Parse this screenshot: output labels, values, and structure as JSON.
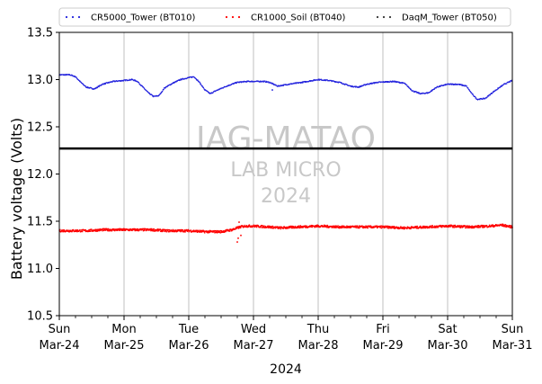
{
  "chart_data": {
    "type": "scatter",
    "title": "",
    "xlabel": "2024",
    "ylabel": "Battery voltage (Volts)",
    "ylim": [
      10.5,
      13.5
    ],
    "yticks": [
      10.5,
      11.0,
      11.5,
      12.0,
      12.5,
      13.0,
      13.5
    ],
    "ytick_labels": [
      "10.5",
      "11.0",
      "11.5",
      "12.0",
      "12.5",
      "13.0",
      "13.5"
    ],
    "xlim": [
      "2024-03-24 00:00",
      "2024-03-31 00:00"
    ],
    "xticks": [
      {
        "day": "Sun",
        "date": "Mar-24"
      },
      {
        "day": "Mon",
        "date": "Mar-25"
      },
      {
        "day": "Tue",
        "date": "Mar-26"
      },
      {
        "day": "Wed",
        "date": "Mar-27"
      },
      {
        "day": "Thu",
        "date": "Mar-28"
      },
      {
        "day": "Fri",
        "date": "Mar-29"
      },
      {
        "day": "Sat",
        "date": "Mar-30"
      },
      {
        "day": "Sun",
        "date": "Mar-31"
      }
    ],
    "grid": "vertical lines at day boundaries",
    "legend_position": "top",
    "reference_line": {
      "y": 12.27,
      "color": "#000000"
    },
    "watermark": [
      "IAG-MATAO",
      "LAB MICRO",
      "2024"
    ],
    "series": [
      {
        "name": "CR5000_Tower (BT010)",
        "color": "#2222dd",
        "points": [
          [
            "2024-03-24 00:00",
            13.05
          ],
          [
            "2024-03-24 04:00",
            13.05
          ],
          [
            "2024-03-24 06:00",
            13.03
          ],
          [
            "2024-03-24 08:00",
            12.97
          ],
          [
            "2024-03-24 10:00",
            12.92
          ],
          [
            "2024-03-24 13:00",
            12.9
          ],
          [
            "2024-03-24 16:00",
            12.95
          ],
          [
            "2024-03-24 20:00",
            12.98
          ],
          [
            "2024-03-25 00:00",
            12.99
          ],
          [
            "2024-03-25 03:00",
            13.0
          ],
          [
            "2024-03-25 05:00",
            12.98
          ],
          [
            "2024-03-25 07:00",
            12.92
          ],
          [
            "2024-03-25 09:00",
            12.86
          ],
          [
            "2024-03-25 11:00",
            12.82
          ],
          [
            "2024-03-25 13:00",
            12.83
          ],
          [
            "2024-03-25 15:00",
            12.91
          ],
          [
            "2024-03-25 18:00",
            12.96
          ],
          [
            "2024-03-25 21:00",
            13.0
          ],
          [
            "2024-03-26 00:00",
            13.02
          ],
          [
            "2024-03-26 02:00",
            13.03
          ],
          [
            "2024-03-26 04:00",
            12.97
          ],
          [
            "2024-03-26 06:00",
            12.89
          ],
          [
            "2024-03-26 08:00",
            12.85
          ],
          [
            "2024-03-26 10:00",
            12.88
          ],
          [
            "2024-03-26 14:00",
            12.93
          ],
          [
            "2024-03-26 18:00",
            12.97
          ],
          [
            "2024-03-26 22:00",
            12.98
          ],
          [
            "2024-03-27 04:00",
            12.98
          ],
          [
            "2024-03-27 06:00",
            12.97
          ],
          [
            "2024-03-27 09:00",
            12.93
          ],
          [
            "2024-03-27 13:00",
            12.95
          ],
          [
            "2024-03-27 18:00",
            12.97
          ],
          [
            "2024-03-28 00:00",
            13.0
          ],
          [
            "2024-03-28 04:00",
            12.99
          ],
          [
            "2024-03-28 08:00",
            12.97
          ],
          [
            "2024-03-28 12:00",
            12.93
          ],
          [
            "2024-03-28 15:00",
            12.92
          ],
          [
            "2024-03-28 18:00",
            12.95
          ],
          [
            "2024-03-28 22:00",
            12.97
          ],
          [
            "2024-03-29 04:00",
            12.98
          ],
          [
            "2024-03-29 08:00",
            12.96
          ],
          [
            "2024-03-29 11:00",
            12.88
          ],
          [
            "2024-03-29 14:00",
            12.85
          ],
          [
            "2024-03-29 17:00",
            12.86
          ],
          [
            "2024-03-29 20:00",
            12.92
          ],
          [
            "2024-03-30 00:00",
            12.95
          ],
          [
            "2024-03-30 04:00",
            12.95
          ],
          [
            "2024-03-30 07:00",
            12.93
          ],
          [
            "2024-03-30 09:00",
            12.85
          ],
          [
            "2024-03-30 11:00",
            12.79
          ],
          [
            "2024-03-30 14:00",
            12.8
          ],
          [
            "2024-03-30 17:00",
            12.87
          ],
          [
            "2024-03-30 21:00",
            12.95
          ],
          [
            "2024-03-31 00:00",
            12.99
          ]
        ],
        "outliers": [
          [
            "2024-03-27 07:00",
            12.89
          ]
        ]
      },
      {
        "name": "CR1000_Soil (BT040)",
        "color": "#ff0000",
        "points": [
          [
            "2024-03-24 00:00",
            11.4
          ],
          [
            "2024-03-24 10:00",
            11.4
          ],
          [
            "2024-03-24 16:00",
            11.41
          ],
          [
            "2024-03-25 00:00",
            11.41
          ],
          [
            "2024-03-25 10:00",
            11.41
          ],
          [
            "2024-03-25 16:00",
            11.4
          ],
          [
            "2024-03-26 00:00",
            11.4
          ],
          [
            "2024-03-26 06:00",
            11.39
          ],
          [
            "2024-03-26 12:00",
            11.39
          ],
          [
            "2024-03-26 16:00",
            11.41
          ],
          [
            "2024-03-26 19:00",
            11.44
          ],
          [
            "2024-03-26 21:00",
            11.45
          ],
          [
            "2024-03-27 00:00",
            11.45
          ],
          [
            "2024-03-27 06:00",
            11.44
          ],
          [
            "2024-03-27 10:00",
            11.43
          ],
          [
            "2024-03-27 16:00",
            11.44
          ],
          [
            "2024-03-28 00:00",
            11.45
          ],
          [
            "2024-03-28 08:00",
            11.44
          ],
          [
            "2024-03-28 16:00",
            11.44
          ],
          [
            "2024-03-29 00:00",
            11.44
          ],
          [
            "2024-03-29 08:00",
            11.43
          ],
          [
            "2024-03-29 16:00",
            11.44
          ],
          [
            "2024-03-30 00:00",
            11.45
          ],
          [
            "2024-03-30 08:00",
            11.44
          ],
          [
            "2024-03-30 16:00",
            11.45
          ],
          [
            "2024-03-30 20:00",
            11.46
          ],
          [
            "2024-03-31 00:00",
            11.44
          ]
        ],
        "outliers": [
          [
            "2024-03-26 18:00",
            11.28
          ],
          [
            "2024-03-26 18:20",
            11.32
          ],
          [
            "2024-03-26 18:40",
            11.49
          ],
          [
            "2024-03-26 17:40",
            11.43
          ],
          [
            "2024-03-26 19:20",
            11.35
          ]
        ]
      },
      {
        "name": "DaqM_Tower (BT050)",
        "color": "#333333",
        "points": []
      }
    ]
  }
}
